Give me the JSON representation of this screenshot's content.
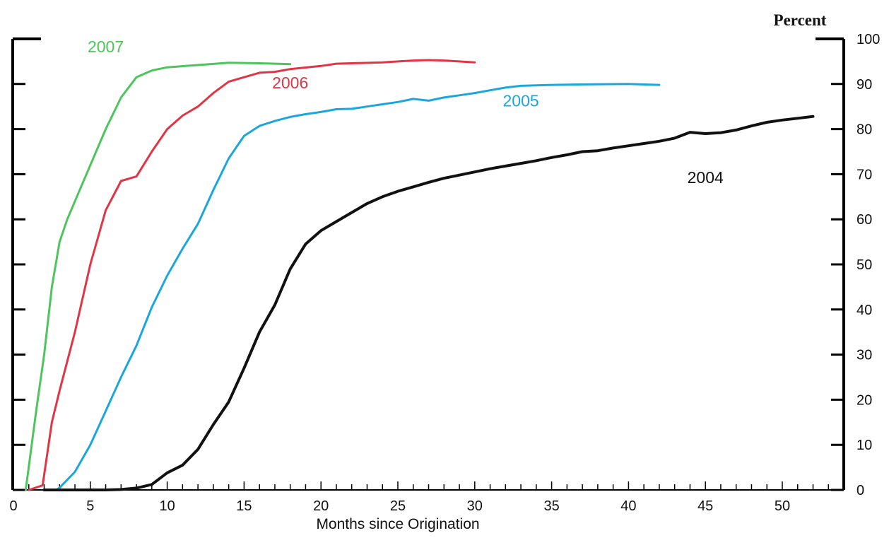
{
  "chart_data": {
    "type": "line",
    "title": "",
    "xlabel": "Months since Origination",
    "ylabel": "Percent",
    "xlim": [
      0,
      54
    ],
    "ylim": [
      0,
      100
    ],
    "x_ticks": [
      0,
      5,
      10,
      15,
      20,
      25,
      30,
      35,
      40,
      45,
      50
    ],
    "y_ticks": [
      0,
      10,
      20,
      30,
      40,
      50,
      60,
      70,
      80,
      90,
      100
    ],
    "y_axis_side": "right",
    "grid": false,
    "legend": "none (series labeled directly on lines)",
    "series": [
      {
        "name": "2007",
        "color": "#4ec45c",
        "x": [
          0.8,
          1.5,
          2,
          2.5,
          3,
          3.5,
          4,
          5,
          6,
          7,
          8,
          9,
          10,
          12,
          14,
          16,
          18
        ],
        "values": [
          0,
          18,
          30,
          45,
          55,
          60,
          64,
          72,
          80,
          87,
          91.5,
          93,
          93.7,
          94.2,
          94.7,
          94.6,
          94.4
        ]
      },
      {
        "name": "2006",
        "color": "#e03545",
        "x": [
          1,
          1.9,
          2.5,
          3,
          4,
          5,
          6,
          7,
          8,
          9,
          10,
          11,
          12,
          13,
          14,
          15,
          16,
          17,
          18,
          20,
          21,
          22,
          24,
          26,
          27,
          28,
          30
        ],
        "values": [
          0,
          1,
          15,
          22,
          35,
          50,
          62,
          68.5,
          69.5,
          75,
          80,
          83,
          85,
          88,
          90.5,
          91.5,
          92.5,
          92.7,
          93.3,
          94,
          94.5,
          94.6,
          94.8,
          95.2,
          95.3,
          95.2,
          94.8
        ]
      },
      {
        "name": "2005",
        "color": "#1ba6dd",
        "x": [
          2.8,
          3,
          4,
          5,
          6,
          7,
          8,
          9,
          10,
          11,
          12,
          13,
          14,
          15,
          16,
          17,
          18,
          19,
          20,
          21,
          22,
          23,
          24,
          25,
          26,
          27,
          28,
          29,
          30,
          31,
          32,
          33,
          35,
          37,
          40,
          42
        ],
        "values": [
          0,
          0.5,
          4,
          10,
          17.5,
          25,
          32,
          40.5,
          47.5,
          53.5,
          59,
          66.5,
          73.5,
          78.5,
          80.7,
          81.8,
          82.7,
          83.3,
          83.8,
          84.4,
          84.5,
          85,
          85.5,
          86,
          86.7,
          86.3,
          87,
          87.5,
          88,
          88.6,
          89.2,
          89.6,
          89.8,
          89.9,
          90,
          89.8
        ]
      },
      {
        "name": "2004",
        "color": "#111111",
        "x": [
          2,
          4,
          6,
          7,
          8,
          9,
          10,
          11,
          12,
          13,
          14,
          15,
          16,
          17,
          18,
          19,
          20,
          21,
          22,
          23,
          24,
          25,
          26,
          27,
          28,
          29,
          30,
          31,
          32,
          33,
          34,
          35,
          36,
          37,
          38,
          39,
          40,
          41,
          42,
          43,
          44,
          45,
          46,
          47,
          48,
          49,
          50,
          51,
          52
        ],
        "values": [
          0,
          0,
          0,
          0.1,
          0.4,
          1.2,
          3.8,
          5.5,
          9,
          14.5,
          19.5,
          27,
          35,
          41,
          49,
          54.5,
          57.5,
          59.5,
          61.5,
          63.5,
          65,
          66.2,
          67.2,
          68.2,
          69.1,
          69.8,
          70.5,
          71.2,
          71.8,
          72.4,
          73,
          73.7,
          74.3,
          75,
          75.2,
          75.8,
          76.3,
          76.8,
          77.3,
          78,
          79.3,
          79,
          79.2,
          79.8,
          80.7,
          81.5,
          82,
          82.4,
          82.8
        ]
      }
    ]
  }
}
